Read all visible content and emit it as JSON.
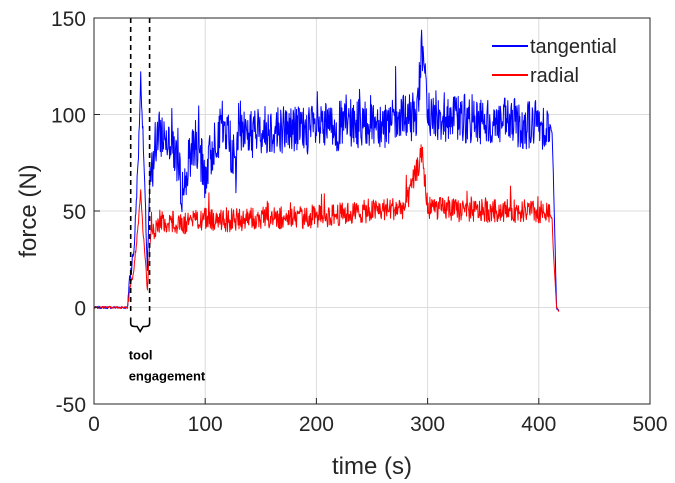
{
  "chart_data": {
    "type": "line",
    "xlabel": "time (s)",
    "ylabel": "force (N)",
    "xlim": [
      0,
      500
    ],
    "ylim": [
      -50,
      150
    ],
    "xticks": [
      0,
      100,
      200,
      300,
      400,
      500
    ],
    "yticks": [
      -50,
      0,
      50,
      100,
      150
    ],
    "x_tick_labels": [
      "0",
      "100",
      "200",
      "300",
      "400",
      "500"
    ],
    "y_tick_labels": [
      "-50",
      "0",
      "50",
      "100",
      "150"
    ],
    "grid": true,
    "legend_position": "top-right",
    "series": [
      {
        "name": "tangential",
        "color": "#0000ff",
        "x": [
          0,
          30,
          32,
          36,
          40,
          42,
          44,
          48,
          50,
          55,
          60,
          70,
          80,
          90,
          100,
          110,
          120,
          128,
          130,
          140,
          150,
          170,
          200,
          230,
          250,
          270,
          290,
          295,
          300,
          330,
          360,
          390,
          410,
          412,
          413,
          416,
          418
        ],
        "y": [
          0,
          0,
          15,
          30,
          80,
          120,
          90,
          20,
          60,
          85,
          90,
          88,
          60,
          88,
          68,
          90,
          92,
          70,
          95,
          90,
          92,
          93,
          92,
          95,
          97,
          95,
          100,
          135,
          100,
          98,
          96,
          95,
          95,
          90,
          70,
          0,
          -2
        ]
      },
      {
        "name": "radial",
        "color": "#ff0000",
        "x": [
          0,
          30,
          32,
          36,
          40,
          42,
          44,
          48,
          50,
          55,
          60,
          70,
          80,
          100,
          120,
          150,
          200,
          250,
          280,
          295,
          300,
          330,
          360,
          390,
          410,
          412,
          413,
          416,
          418
        ],
        "y": [
          0,
          0,
          8,
          20,
          45,
          60,
          40,
          10,
          30,
          42,
          45,
          44,
          43,
          46,
          45,
          46,
          47,
          50,
          52,
          80,
          52,
          50,
          50,
          50,
          48,
          46,
          30,
          0,
          -2
        ]
      }
    ],
    "annotation": {
      "text_line1": "tool",
      "text_line2": "engagement",
      "x_start": 33,
      "x_end": 50
    }
  }
}
